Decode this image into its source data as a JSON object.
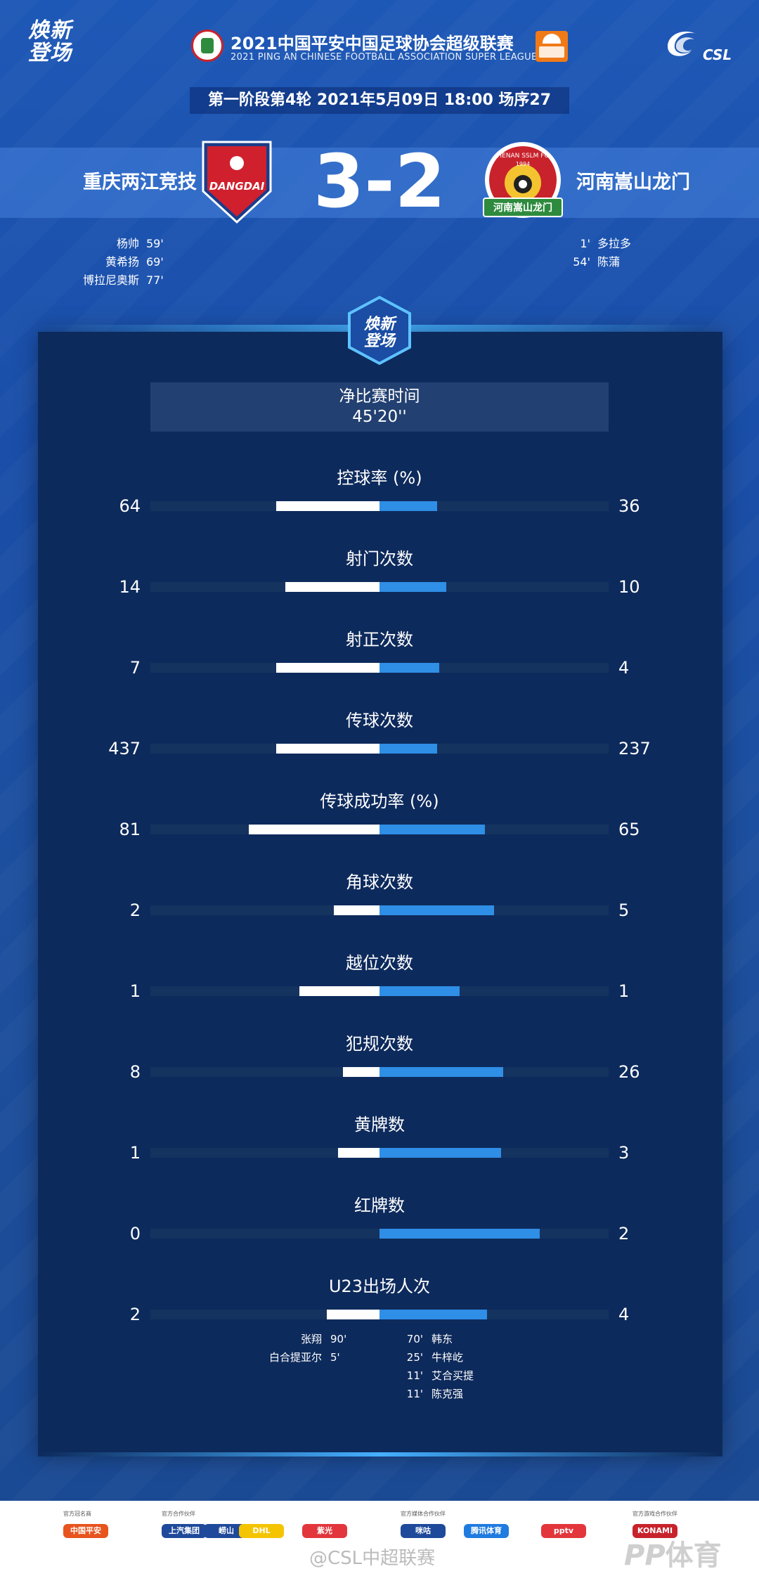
{
  "brand": {
    "line1": "焕新",
    "line2": "登场"
  },
  "league": {
    "title": "2021中国平安中国足球协会超级联赛",
    "subtitle": "2021 PING AN CHINESE FOOTBALL ASSOCIATION SUPER LEAGUE",
    "csl": "CSL"
  },
  "round_info": "第一阶段第4轮  2021年5月09日 18:00 场序27",
  "match": {
    "home_team": "重庆两江竞技",
    "away_team": "河南嵩山龙门",
    "score": "3-2",
    "home_crest_text": "DANGDAI",
    "away_crest_text": "河南嵩山龙门",
    "away_crest_top": "HENAN SSLM FC",
    "away_crest_year": "1994",
    "home_goals": [
      {
        "player": "杨帅",
        "minute": "59'"
      },
      {
        "player": "黄希扬",
        "minute": "69'"
      },
      {
        "player": "博拉尼奥斯",
        "minute": "77'"
      }
    ],
    "away_goals": [
      {
        "player": "多拉多",
        "minute": "1'"
      },
      {
        "player": "陈蒲",
        "minute": "54'"
      }
    ]
  },
  "panel": {
    "badge_line1": "焕新",
    "badge_line2": "登场",
    "net_time_label": "净比赛时间",
    "net_time_value": "45'20''"
  },
  "stats": [
    {
      "label": "控球率 (%)",
      "home": "64",
      "away": "36",
      "home_frac": 0.45,
      "away_frac": 0.25
    },
    {
      "label": "射门次数",
      "home": "14",
      "away": "10",
      "home_frac": 0.41,
      "away_frac": 0.29
    },
    {
      "label": "射正次数",
      "home": "7",
      "away": "4",
      "home_frac": 0.45,
      "away_frac": 0.26
    },
    {
      "label": "传球次数",
      "home": "437",
      "away": "237",
      "home_frac": 0.45,
      "away_frac": 0.25
    },
    {
      "label": "传球成功率 (%)",
      "home": "81",
      "away": "65",
      "home_frac": 0.57,
      "away_frac": 0.46
    },
    {
      "label": "角球次数",
      "home": "2",
      "away": "5",
      "home_frac": 0.2,
      "away_frac": 0.5
    },
    {
      "label": "越位次数",
      "home": "1",
      "away": "1",
      "home_frac": 0.35,
      "away_frac": 0.35
    },
    {
      "label": "犯规次数",
      "home": "8",
      "away": "26",
      "home_frac": 0.16,
      "away_frac": 0.54
    },
    {
      "label": "黄牌数",
      "home": "1",
      "away": "3",
      "home_frac": 0.18,
      "away_frac": 0.53
    },
    {
      "label": "红牌数",
      "home": "0",
      "away": "2",
      "home_frac": 0.0,
      "away_frac": 0.7
    },
    {
      "label": "U23出场人次",
      "home": "2",
      "away": "4",
      "home_frac": 0.23,
      "away_frac": 0.47
    }
  ],
  "u23": {
    "home": [
      {
        "player": "张翔",
        "minute": "90'"
      },
      {
        "player": "白合提亚尔",
        "minute": "5'"
      }
    ],
    "away": [
      {
        "player": "韩东",
        "minute": "70'"
      },
      {
        "player": "牛梓屹",
        "minute": "25'"
      },
      {
        "player": "艾合买提",
        "minute": "11'"
      },
      {
        "player": "陈克强",
        "minute": "11'"
      }
    ]
  },
  "footer": {
    "sponsors": [
      {
        "label": "官方冠名商",
        "name": "中国平安",
        "color": "#e8541e"
      },
      {
        "label": "官方合作伙伴",
        "name": "上汽集团",
        "color": "#1f4a9b"
      },
      {
        "label": "",
        "name": "崂山",
        "color": "#1f4a9b"
      },
      {
        "label": "",
        "name": "DHL",
        "color": "#f5c400"
      },
      {
        "label": "",
        "name": "紫光",
        "color": "#e2363c"
      },
      {
        "label": "官方媒体合作伙伴",
        "name": "咪咕",
        "color": "#1f4a9b"
      },
      {
        "label": "",
        "name": "腾讯体育",
        "color": "#1f7be0"
      },
      {
        "label": "",
        "name": "pptv",
        "color": "#e2363c"
      },
      {
        "label": "官方游戏合作伙伴",
        "name": "KONAMI",
        "color": "#c8232c"
      }
    ],
    "watermark": "@CSL中超联赛",
    "ptv": "体育"
  }
}
